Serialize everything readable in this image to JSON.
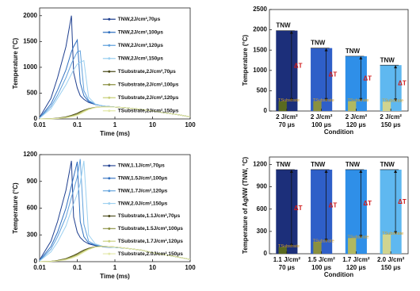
{
  "chart_data": [
    {
      "type": "line",
      "xlabel": "Time (ms)",
      "ylabel": "Temperature (°C)",
      "log_x": true,
      "legend": "upper right",
      "x": [
        0.01,
        0.02,
        0.03,
        0.05,
        0.07,
        0.08,
        0.1,
        0.12,
        0.15,
        0.2,
        0.3,
        0.5,
        1,
        2,
        5,
        10,
        20,
        50,
        100
      ],
      "xlim": [
        0.01,
        100
      ],
      "xticks": [
        0.01,
        0.1,
        1,
        10,
        100
      ],
      "ylim": [
        0,
        2150
      ],
      "yticks": [
        0,
        500,
        1000,
        1500,
        2000
      ],
      "series": [
        {
          "name": "TNW,2J/cm²,70μs",
          "color": "#1f3f8f",
          "values": [
            30,
            400,
            800,
            1400,
            2000,
            900,
            600,
            450,
            380,
            320,
            280,
            250,
            230,
            215,
            185,
            155,
            120,
            80,
            40
          ]
        },
        {
          "name": "TNW,2J/cm²,100μs",
          "color": "#2f6fbf",
          "values": [
            20,
            290,
            560,
            950,
            1300,
            1400,
            1530,
            700,
            450,
            340,
            280,
            250,
            230,
            215,
            185,
            155,
            120,
            80,
            40
          ]
        },
        {
          "name": "TNW,2J/cm²,120μs",
          "color": "#5fa0dc",
          "values": [
            20,
            240,
            460,
            800,
            1070,
            1160,
            1300,
            1320,
            550,
            360,
            285,
            250,
            230,
            215,
            185,
            155,
            120,
            80,
            40
          ]
        },
        {
          "name": "TNW,2J/cm²,150μs",
          "color": "#9cd0f0",
          "values": [
            15,
            200,
            400,
            660,
            870,
            950,
            1060,
            1100,
            1130,
            420,
            290,
            250,
            230,
            215,
            185,
            155,
            120,
            80,
            40
          ]
        },
        {
          "name": "TSubstrate,2J/cm²,70μs",
          "color": "#4a4a1a",
          "values": [
            0,
            5,
            15,
            40,
            70,
            85,
            110,
            140,
            170,
            200,
            225,
            235,
            230,
            215,
            185,
            155,
            120,
            80,
            40
          ]
        },
        {
          "name": "TSubstrate,2J/cm²,100μs",
          "color": "#8a8f40",
          "values": [
            0,
            4,
            12,
            33,
            60,
            72,
            95,
            125,
            160,
            195,
            222,
            235,
            230,
            215,
            185,
            155,
            120,
            80,
            40
          ]
        },
        {
          "name": "TSubstrate,2J/cm²,120μs",
          "color": "#c8cf7a",
          "values": [
            0,
            3,
            10,
            28,
            50,
            62,
            82,
            110,
            150,
            188,
            220,
            234,
            230,
            215,
            185,
            155,
            120,
            80,
            40
          ]
        },
        {
          "name": "TSubstrate,2J/cm²,150μs",
          "color": "#e3e8a8",
          "values": [
            0,
            2,
            8,
            22,
            42,
            52,
            70,
            95,
            135,
            180,
            218,
            233,
            230,
            215,
            185,
            155,
            120,
            80,
            40
          ]
        }
      ]
    },
    {
      "type": "bar",
      "xlabel": "Condition",
      "ylabel": "Temperature (°C)",
      "delta_label": "ΔT",
      "categories": [
        [
          "2 J/cm²",
          "70 μs"
        ],
        [
          "2 J/cm²",
          "100 μs"
        ],
        [
          "2 J/cm²",
          "120 μs"
        ],
        [
          "2 J/cm²",
          "150 μs"
        ]
      ],
      "ylim": [
        0,
        2500
      ],
      "yticks": [
        0,
        500,
        1000,
        1500,
        2000,
        2500
      ],
      "series": [
        {
          "name": "TNW",
          "colors": [
            "#1c2f7a",
            "#2f5fc8",
            "#2f8fe8",
            "#5fb8f0"
          ],
          "values": [
            1980,
            1550,
            1350,
            1130
          ]
        },
        {
          "name": "TSubstrate",
          "colors": [
            "#5a6a20",
            "#8a9040",
            "#b0b860",
            "#d0d490"
          ],
          "values": [
            240,
            240,
            240,
            230
          ]
        }
      ]
    },
    {
      "type": "line",
      "xlabel": "Time (ms)",
      "ylabel": "Temperature (°C)",
      "log_x": true,
      "legend": "upper right",
      "x": [
        0.01,
        0.02,
        0.03,
        0.05,
        0.07,
        0.08,
        0.1,
        0.12,
        0.15,
        0.2,
        0.3,
        0.5,
        1,
        2,
        5,
        10,
        20,
        50,
        100
      ],
      "xlim": [
        0.01,
        100
      ],
      "xticks": [
        0.01,
        0.1,
        1,
        10,
        100
      ],
      "ylim": [
        0,
        1200
      ],
      "yticks": [
        0,
        300,
        600,
        900,
        1200
      ],
      "series": [
        {
          "name": "TNW,1.1J/cm²,70μs",
          "color": "#1f3f8f",
          "values": [
            20,
            230,
            450,
            800,
            1130,
            500,
            330,
            270,
            230,
            200,
            180,
            165,
            160,
            150,
            130,
            100,
            80,
            50,
            25
          ]
        },
        {
          "name": "TNW,1.5J/cm²,100μs",
          "color": "#2f6fbf",
          "values": [
            15,
            170,
            330,
            600,
            850,
            950,
            1120,
            450,
            280,
            210,
            185,
            165,
            160,
            150,
            130,
            100,
            80,
            50,
            25
          ]
        },
        {
          "name": "TNW,1.7J/cm²,120μs",
          "color": "#5fa0dc",
          "values": [
            10,
            140,
            280,
            500,
            720,
            800,
            950,
            1150,
            420,
            230,
            190,
            168,
            160,
            150,
            130,
            100,
            80,
            50,
            25
          ]
        },
        {
          "name": "TNW,2.0J/cm²,150μs",
          "color": "#9cd0f0",
          "values": [
            8,
            110,
            220,
            400,
            580,
            650,
            760,
            880,
            1130,
            300,
            200,
            170,
            160,
            150,
            130,
            100,
            80,
            50,
            25
          ]
        },
        {
          "name": "TSubstrate,1.1J/cm²,70μs",
          "color": "#4a4a1a",
          "values": [
            0,
            5,
            15,
            35,
            60,
            70,
            90,
            110,
            130,
            150,
            168,
            172,
            165,
            150,
            130,
            100,
            80,
            50,
            25
          ]
        },
        {
          "name": "TSubstrate,1.5J/cm²,100μs",
          "color": "#8a8f40",
          "values": [
            0,
            4,
            12,
            30,
            52,
            62,
            80,
            100,
            122,
            145,
            166,
            172,
            165,
            150,
            130,
            100,
            80,
            50,
            25
          ]
        },
        {
          "name": "TSubstrate,1.7J/cm²,120μs",
          "color": "#c8cf7a",
          "values": [
            0,
            3,
            10,
            25,
            45,
            55,
            72,
            92,
            115,
            140,
            164,
            171,
            165,
            150,
            130,
            100,
            80,
            50,
            25
          ]
        },
        {
          "name": "TSubstrate,2.0J/cm²,150μs",
          "color": "#e3e8a8",
          "values": [
            0,
            2,
            8,
            20,
            38,
            47,
            63,
            82,
            106,
            135,
            162,
            170,
            165,
            150,
            130,
            100,
            80,
            50,
            25
          ]
        }
      ]
    },
    {
      "type": "bar",
      "xlabel": "Condition",
      "ylabel": "Temperature of AgNW (TNW, °C)",
      "delta_label": "ΔT",
      "categories": [
        [
          "1.1 J/cm²",
          "70 μs"
        ],
        [
          "1.5 J/cm²",
          "100 μs"
        ],
        [
          "1.7 J/cm²",
          "120 μs"
        ],
        [
          "2.0 J/cm²",
          "150 μs"
        ]
      ],
      "ylim": [
        0,
        1300
      ],
      "yticks": [
        0,
        300,
        600,
        900,
        1200
      ],
      "series": [
        {
          "name": "TNW",
          "colors": [
            "#1c2f7a",
            "#2f5fc8",
            "#2f8fe8",
            "#5fb8f0"
          ],
          "values": [
            1130,
            1130,
            1130,
            1130
          ]
        },
        {
          "name": "TSubstrate",
          "colors": [
            "#5a6a20",
            "#8a9040",
            "#b0b860",
            "#d0d490"
          ],
          "values": [
            90,
            160,
            210,
            260
          ]
        }
      ]
    }
  ]
}
